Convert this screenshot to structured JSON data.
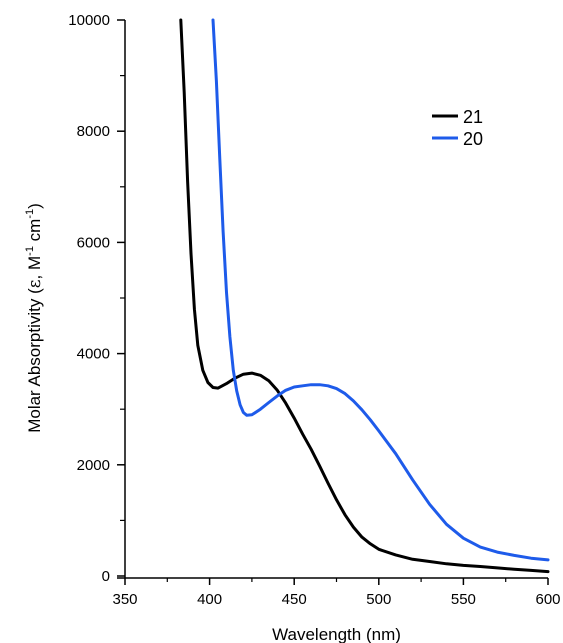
{
  "chart_data": {
    "type": "line",
    "title": "",
    "xlabel": "Wavelength (nm)",
    "ylabel": {
      "prefix": "Molar Absorptivity (",
      "symbol": "ε",
      "middle": ", M",
      "exp1": "-1",
      "unit2": " cm",
      "exp2": "-1",
      "suffix": ")"
    },
    "xlim": [
      350,
      600
    ],
    "ylim": [
      0,
      10000
    ],
    "xticks": [
      350,
      400,
      450,
      500,
      550,
      600
    ],
    "yticks": [
      0,
      2000,
      4000,
      6000,
      8000,
      10000
    ],
    "grid": false,
    "legend_position": "top-right",
    "series": [
      {
        "name": "21",
        "color": "#000000",
        "x": [
          383,
          385,
          387,
          389,
          391,
          393,
          396,
          399,
          402,
          405,
          410,
          415,
          420,
          425,
          430,
          435,
          440,
          445,
          450,
          455,
          460,
          465,
          470,
          475,
          480,
          485,
          490,
          495,
          500,
          510,
          520,
          530,
          540,
          550,
          560,
          570,
          580,
          590,
          600
        ],
        "y": [
          10000,
          8700,
          7100,
          5800,
          4800,
          4150,
          3700,
          3480,
          3390,
          3380,
          3460,
          3560,
          3630,
          3650,
          3610,
          3510,
          3340,
          3110,
          2840,
          2550,
          2280,
          1980,
          1670,
          1370,
          1100,
          880,
          700,
          580,
          480,
          380,
          300,
          260,
          220,
          190,
          170,
          145,
          120,
          100,
          80
        ]
      },
      {
        "name": "20",
        "color": "#1e5bea",
        "x": [
          402,
          404,
          406,
          408,
          410,
          412,
          414,
          416,
          418,
          420,
          422,
          425,
          430,
          435,
          440,
          445,
          450,
          455,
          460,
          465,
          470,
          475,
          480,
          485,
          490,
          495,
          500,
          510,
          520,
          530,
          540,
          550,
          560,
          570,
          580,
          590,
          600
        ],
        "y": [
          10000,
          8900,
          7500,
          6200,
          5100,
          4300,
          3700,
          3330,
          3080,
          2940,
          2890,
          2900,
          3000,
          3120,
          3240,
          3340,
          3400,
          3420,
          3440,
          3440,
          3420,
          3370,
          3280,
          3150,
          2990,
          2810,
          2610,
          2200,
          1730,
          1290,
          930,
          680,
          520,
          430,
          370,
          320,
          290
        ]
      }
    ]
  }
}
